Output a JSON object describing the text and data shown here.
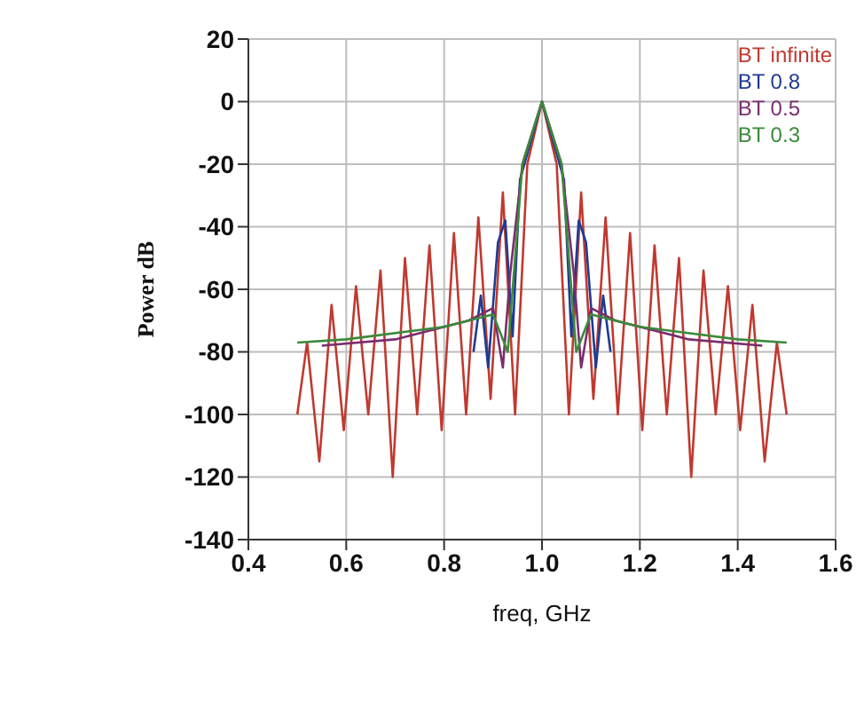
{
  "chart_data": {
    "type": "line",
    "xlabel": "freq, GHz",
    "ylabel": "Power dB",
    "xlim": [
      0.4,
      1.6
    ],
    "xticks": [
      0.4,
      0.6,
      0.8,
      {
        "value": 1,
        "label": "1.0"
      },
      1.2,
      1.4,
      1.6
    ],
    "ylim": [
      -140,
      20
    ],
    "yticks": [
      -140,
      -120,
      -100,
      -80,
      -60,
      -40,
      -20,
      0,
      20
    ],
    "grid": true,
    "legend": "top right",
    "marker": "none",
    "line_style": "solid",
    "series": [
      {
        "name": "BT infinite",
        "color": "#c0392f",
        "x": [
          0.5,
          0.52,
          0.545,
          0.57,
          0.595,
          0.62,
          0.645,
          0.67,
          0.695,
          0.72,
          0.745,
          0.77,
          0.795,
          0.82,
          0.845,
          0.87,
          0.895,
          0.92,
          0.945,
          0.97,
          1.0,
          1.03,
          1.055,
          1.08,
          1.105,
          1.13,
          1.155,
          1.18,
          1.205,
          1.23,
          1.255,
          1.28,
          1.305,
          1.33,
          1.355,
          1.38,
          1.405,
          1.43,
          1.455,
          1.48,
          1.5
        ],
        "values": [
          -100,
          -77,
          -115,
          -65,
          -105,
          -59,
          -100,
          -54,
          -120,
          -50,
          -100,
          -46,
          -105,
          -42,
          -100,
          -37,
          -95,
          -29,
          -100,
          -20,
          0,
          -20,
          -100,
          -29,
          -95,
          -37,
          -100,
          -42,
          -105,
          -46,
          -100,
          -50,
          -120,
          -54,
          -100,
          -59,
          -105,
          -65,
          -115,
          -77,
          -100
        ]
      },
      {
        "name": "BT 0.8",
        "color": "#1f3a93",
        "x": [
          0.86,
          0.875,
          0.89,
          0.91,
          0.925,
          0.94,
          0.955,
          1.0,
          1.045,
          1.06,
          1.075,
          1.09,
          1.11,
          1.125,
          1.14
        ],
        "values": [
          -80,
          -62,
          -85,
          -45,
          -38,
          -75,
          -25,
          0,
          -25,
          -75,
          -38,
          -45,
          -85,
          -62,
          -80
        ]
      },
      {
        "name": "BT 0.5",
        "color": "#7b2d6e",
        "x": [
          0.55,
          0.7,
          0.85,
          0.9,
          0.92,
          0.935,
          0.96,
          1.0,
          1.04,
          1.065,
          1.08,
          1.1,
          1.15,
          1.3,
          1.45
        ],
        "values": [
          -78,
          -76,
          -70,
          -66,
          -85,
          -55,
          -20,
          0,
          -20,
          -55,
          -85,
          -66,
          -70,
          -76,
          -78
        ]
      },
      {
        "name": "BT 0.3",
        "color": "#3a8a3a",
        "x": [
          0.5,
          0.6,
          0.8,
          0.9,
          0.93,
          0.94,
          0.96,
          1.0,
          1.04,
          1.06,
          1.07,
          1.1,
          1.2,
          1.4,
          1.5
        ],
        "values": [
          -77,
          -76,
          -72,
          -68,
          -80,
          -60,
          -20,
          0,
          -20,
          -60,
          -80,
          -68,
          -72,
          -76,
          -77
        ]
      }
    ]
  }
}
